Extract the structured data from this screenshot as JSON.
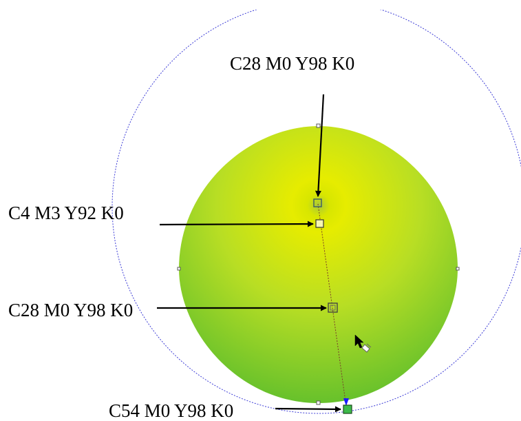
{
  "labels": {
    "top": "C28 M0 Y98 K0",
    "left_upper": "C4 M3 Y92 K0",
    "left_middle": "C28 M0 Y98 K0",
    "bottom": "C54 M0 Y98 K0"
  },
  "colors": {
    "center_highlight": "#e6ec00",
    "mid_green": "#b8de24",
    "edge_green": "#5ebe30",
    "guide_circle": "#3b3bd6",
    "end_node": "#3dba4a",
    "arrow": "#000000"
  },
  "icons": [
    "fill-tool-cursor-icon"
  ]
}
